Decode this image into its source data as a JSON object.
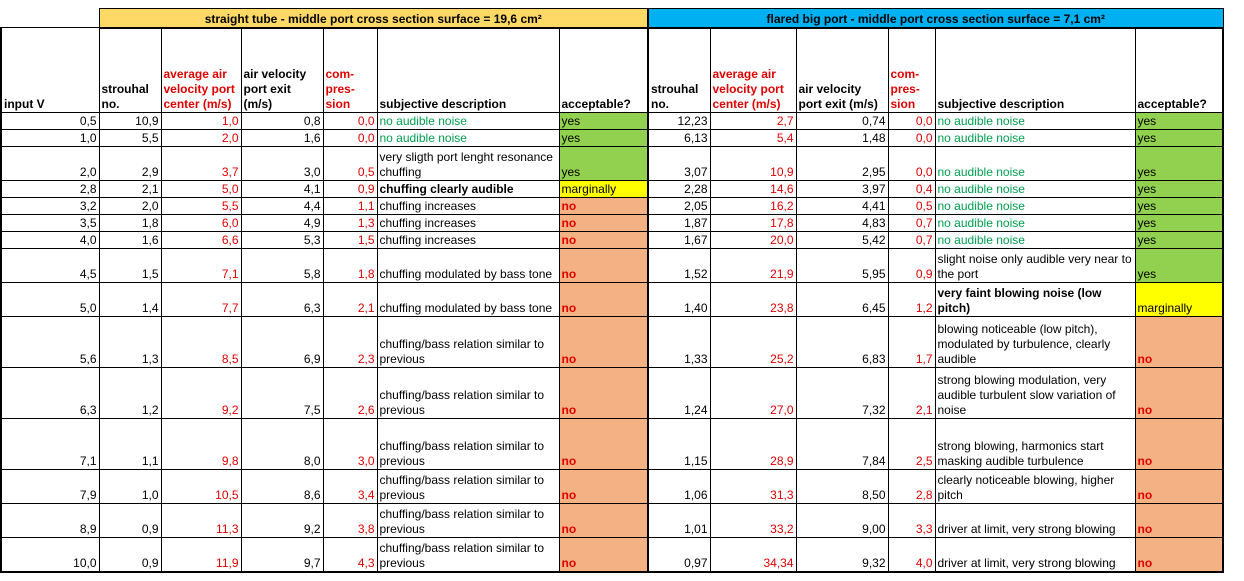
{
  "colors": {
    "banner_left": "#ffd966",
    "banner_right": "#00b0f0",
    "yes": "#92d050",
    "marginally": "#ffff00",
    "no": "#f4b183",
    "red_text": "#e00000",
    "green_text": "#00a050"
  },
  "banners": {
    "left": "straight tube - middle port cross section surface = 19,6 cm²",
    "right": "flared big port - middle port cross section surface = 7,1 cm²"
  },
  "headers": {
    "input": "input V",
    "strouhal": "strouhal no.",
    "avg_velocity": "average air velocity port center (m/s)",
    "exit_velocity": "air velocity port exit (m/s)",
    "compression": "com- pres- sion",
    "description": "subjective description",
    "acceptable": "acceptable?"
  },
  "rows": [
    {
      "v": "0,5",
      "ls": "10,9",
      "la": "1,0",
      "le": "0,8",
      "lc": "0,0",
      "ld": "no audible noise",
      "ldc": "green",
      "lk": "yes",
      "rs": "12,23",
      "ra": "2,7",
      "re": "0,74",
      "rc": "0,0",
      "rd": "no audible noise",
      "rdc": "green",
      "rk": "yes"
    },
    {
      "v": "1,0",
      "ls": "5,5",
      "la": "2,0",
      "le": "1,6",
      "lc": "0,0",
      "ld": "no audible noise",
      "ldc": "green",
      "lk": "yes",
      "rs": "6,13",
      "ra": "5,4",
      "re": "1,48",
      "rc": "0,0",
      "rd": "no audible noise",
      "rdc": "green",
      "rk": "yes"
    },
    {
      "v": "2,0",
      "ls": "2,9",
      "la": "3,7",
      "le": "3,0",
      "lc": "0,5",
      "ld": "very sligth port lenght resonance chuffing",
      "ldc": "",
      "lk": "yes",
      "rs": "3,07",
      "ra": "10,9",
      "re": "2,95",
      "rc": "0,0",
      "rd": "no audible noise",
      "rdc": "green",
      "rk": "yes"
    },
    {
      "v": "2,8",
      "ls": "2,1",
      "la": "5,0",
      "le": "4,1",
      "lc": "0,9",
      "ld": "chuffing clearly audible",
      "ldc": "bold",
      "lk": "marginally",
      "rs": "2,28",
      "ra": "14,6",
      "re": "3,97",
      "rc": "0,4",
      "rd": "no audible noise",
      "rdc": "green",
      "rk": "yes"
    },
    {
      "v": "3,2",
      "ls": "2,0",
      "la": "5,5",
      "le": "4,4",
      "lc": "1,1",
      "ld": "chuffing increases",
      "ldc": "",
      "lk": "no",
      "rs": "2,05",
      "ra": "16,2",
      "re": "4,41",
      "rc": "0,5",
      "rd": "no audible noise",
      "rdc": "green",
      "rk": "yes"
    },
    {
      "v": "3,5",
      "ls": "1,8",
      "la": "6,0",
      "le": "4,9",
      "lc": "1,3",
      "ld": "chuffing increases",
      "ldc": "",
      "lk": "no",
      "rs": "1,87",
      "ra": "17,8",
      "re": "4,83",
      "rc": "0,7",
      "rd": "no audible noise",
      "rdc": "green",
      "rk": "yes"
    },
    {
      "v": "4,0",
      "ls": "1,6",
      "la": "6,6",
      "le": "5,3",
      "lc": "1,5",
      "ld": "chuffing increases",
      "ldc": "",
      "lk": "no",
      "rs": "1,67",
      "ra": "20,0",
      "re": "5,42",
      "rc": "0,7",
      "rd": "no audible noise",
      "rdc": "green",
      "rk": "yes"
    },
    {
      "v": "4,5",
      "ls": "1,5",
      "la": "7,1",
      "le": "5,8",
      "lc": "1,8",
      "ld": "chuffing modulated by bass tone",
      "ldc": "",
      "lk": "no",
      "rs": "1,52",
      "ra": "21,9",
      "re": "5,95",
      "rc": "0,9",
      "rd": "slight noise only audible very near to the port",
      "rdc": "",
      "rk": "yes"
    },
    {
      "v": "5,0",
      "ls": "1,4",
      "la": "7,7",
      "le": "6,3",
      "lc": "2,1",
      "ld": "chuffing modulated by bass tone",
      "ldc": "",
      "lk": "no",
      "rs": "1,40",
      "ra": "23,8",
      "re": "6,45",
      "rc": "1,2",
      "rd": "very faint blowing noise (low pitch)",
      "rdc": "bold",
      "rk": "marginally"
    },
    {
      "v": "5,6",
      "ls": "1,3",
      "la": "8,5",
      "le": "6,9",
      "lc": "2,3",
      "ld": "chuffing/bass relation similar to previous",
      "ldc": "",
      "lk": "no",
      "rs": "1,33",
      "ra": "25,2",
      "re": "6,83",
      "rc": "1,7",
      "rd": "blowing noticeable (low pitch), modulated by turbulence, clearly audible",
      "rdc": "",
      "rk": "no"
    },
    {
      "v": "6,3",
      "ls": "1,2",
      "la": "9,2",
      "le": "7,5",
      "lc": "2,6",
      "ld": "chuffing/bass relation similar to previous",
      "ldc": "",
      "lk": "no",
      "rs": "1,24",
      "ra": "27,0",
      "re": "7,32",
      "rc": "2,1",
      "rd": "strong blowing modulation, very audible turbulent slow variation of noise",
      "rdc": "",
      "rk": "no"
    },
    {
      "v": "7,1",
      "ls": "1,1",
      "la": "9,8",
      "le": "8,0",
      "lc": "3,0",
      "ld": "chuffing/bass relation similar to previous",
      "ldc": "",
      "lk": "no",
      "rs": "1,15",
      "ra": "28,9",
      "re": "7,84",
      "rc": "2,5",
      "rd": "strong blowing, harmonics start masking audible turbulence",
      "rdc": "",
      "rk": "no"
    },
    {
      "v": "7,9",
      "ls": "1,0",
      "la": "10,5",
      "le": "8,6",
      "lc": "3,4",
      "ld": "chuffing/bass relation similar to previous",
      "ldc": "",
      "lk": "no",
      "rs": "1,06",
      "ra": "31,3",
      "re": "8,50",
      "rc": "2,8",
      "rd": "clearly noticeable blowing, higher pitch",
      "rdc": "",
      "rk": "no"
    },
    {
      "v": "8,9",
      "ls": "0,9",
      "la": "11,3",
      "le": "9,2",
      "lc": "3,8",
      "ld": "chuffing/bass relation similar to previous",
      "ldc": "",
      "lk": "no",
      "rs": "1,01",
      "ra": "33,2",
      "re": "9,00",
      "rc": "3,3",
      "rd": "driver at limit, very strong blowing",
      "rdc": "",
      "rk": "no"
    },
    {
      "v": "10,0",
      "ls": "0,9",
      "la": "11,9",
      "le": "9,7",
      "lc": "4,3",
      "ld": "chuffing/bass relation similar to previous",
      "ldc": "",
      "lk": "no",
      "rs": "0,97",
      "ra": "34,34",
      "re": "9,32",
      "rc": "4,0",
      "rd": "driver at limit, very strong blowing",
      "rdc": "",
      "rk": "no"
    }
  ]
}
